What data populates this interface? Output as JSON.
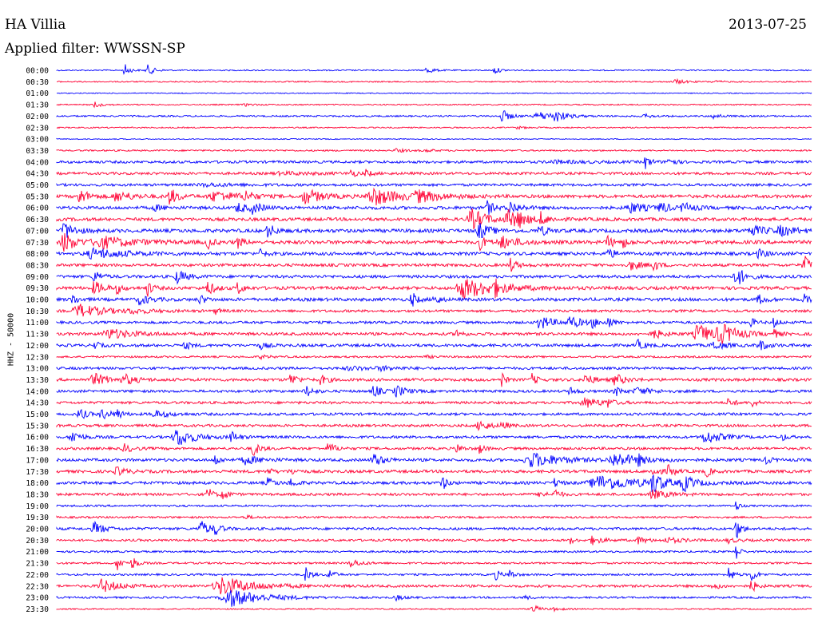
{
  "header": {
    "station": "HA Villia",
    "date": "2013-07-25",
    "filter": "Applied filter: WWSSN-SP"
  },
  "chart_data": {
    "type": "line",
    "title": "HA Villia",
    "ylabel": "HHZ - 50000",
    "trace_colors": [
      "#0000ff",
      "#ff0033"
    ],
    "rows": [
      "00:00",
      "00:30",
      "01:00",
      "01:30",
      "02:00",
      "02:30",
      "03:00",
      "03:30",
      "04:00",
      "04:30",
      "05:00",
      "05:30",
      "06:00",
      "06:30",
      "07:00",
      "07:30",
      "08:00",
      "08:30",
      "09:00",
      "09:30",
      "10:00",
      "10:30",
      "11:00",
      "11:30",
      "12:00",
      "12:30",
      "13:00",
      "13:30",
      "14:00",
      "14:30",
      "15:00",
      "15:30",
      "16:00",
      "16:30",
      "17:00",
      "17:30",
      "18:00",
      "18:30",
      "19:00",
      "19:30",
      "20:00",
      "20:30",
      "21:00",
      "21:30",
      "22:00",
      "22:30",
      "23:00",
      "23:30"
    ],
    "noise": [
      0.8,
      0.8,
      0.6,
      0.8,
      1.0,
      0.8,
      0.6,
      1.0,
      1.6,
      1.6,
      1.6,
      2.0,
      2.0,
      2.0,
      2.2,
      2.2,
      2.0,
      1.8,
      1.8,
      2.0,
      2.0,
      1.6,
      1.6,
      1.8,
      1.8,
      1.2,
      1.6,
      1.8,
      1.6,
      1.6,
      1.6,
      1.6,
      1.6,
      1.6,
      1.8,
      1.8,
      1.8,
      1.6,
      1.2,
      1.2,
      1.6,
      1.4,
      1.2,
      1.2,
      1.2,
      1.6,
      1.2,
      0.8
    ],
    "events": [
      [
        [
          0.09,
          8,
          0.006
        ],
        [
          0.12,
          7,
          0.008
        ],
        [
          0.49,
          5,
          0.008
        ],
        [
          0.58,
          5,
          0.006
        ]
      ],
      [
        [
          0.82,
          3,
          0.012
        ],
        [
          0.87,
          1.5,
          0.01
        ]
      ],
      [],
      [
        [
          0.05,
          4,
          0.008
        ],
        [
          0.25,
          1.5,
          0.01
        ]
      ],
      [
        [
          0.59,
          8,
          0.01
        ],
        [
          0.64,
          5,
          0.025
        ],
        [
          0.66,
          7,
          0.01
        ],
        [
          0.78,
          2,
          0.012
        ],
        [
          0.87,
          3,
          0.01
        ]
      ],
      [
        [
          0.61,
          1.5,
          0.01
        ]
      ],
      [],
      [
        [
          0.45,
          2,
          0.012
        ],
        [
          0.49,
          1.5,
          0.01
        ]
      ],
      [
        [
          0.78,
          8,
          0.006
        ],
        [
          0.81,
          9,
          0.006
        ],
        [
          0.66,
          1.5,
          0.04
        ]
      ],
      [
        [
          0.39,
          5,
          0.006
        ],
        [
          0.41,
          4,
          0.006
        ],
        [
          0.3,
          1.5,
          0.05
        ]
      ],
      [
        [
          0.2,
          1.5,
          0.05
        ]
      ],
      [
        [
          0.03,
          9,
          0.012
        ],
        [
          0.08,
          6,
          0.02
        ],
        [
          0.15,
          10,
          0.01
        ],
        [
          0.21,
          6,
          0.03
        ],
        [
          0.25,
          7,
          0.008
        ],
        [
          0.33,
          9,
          0.02
        ],
        [
          0.42,
          11,
          0.03
        ],
        [
          0.48,
          6,
          0.03
        ]
      ],
      [
        [
          0.24,
          7,
          0.01
        ],
        [
          0.26,
          6,
          0.012
        ],
        [
          0.57,
          9,
          0.008
        ],
        [
          0.6,
          8,
          0.012
        ],
        [
          0.76,
          6,
          0.02
        ],
        [
          0.8,
          8,
          0.008
        ],
        [
          0.83,
          6,
          0.012
        ],
        [
          0.13,
          3,
          0.012
        ]
      ],
      [
        [
          0.55,
          12,
          0.02
        ],
        [
          0.6,
          10,
          0.02
        ],
        [
          0.64,
          8,
          0.008
        ],
        [
          0.61,
          7,
          0.006
        ]
      ],
      [
        [
          0.01,
          11,
          0.012
        ],
        [
          0.28,
          9,
          0.008
        ],
        [
          0.56,
          10,
          0.012
        ],
        [
          0.64,
          6,
          0.01
        ],
        [
          0.92,
          6,
          0.02
        ],
        [
          0.96,
          5,
          0.02
        ]
      ],
      [
        [
          0.01,
          12,
          0.015
        ],
        [
          0.06,
          7,
          0.04
        ],
        [
          0.2,
          8,
          0.006
        ],
        [
          0.24,
          7,
          0.006
        ],
        [
          0.56,
          9,
          0.008
        ],
        [
          0.59,
          7,
          0.02
        ],
        [
          0.73,
          7,
          0.008
        ],
        [
          0.75,
          6,
          0.006
        ]
      ],
      [
        [
          0.05,
          6,
          0.04
        ],
        [
          0.27,
          5,
          0.006
        ],
        [
          0.73,
          6,
          0.01
        ],
        [
          0.93,
          5,
          0.01
        ]
      ],
      [
        [
          0.6,
          9,
          0.008
        ],
        [
          0.76,
          6,
          0.012
        ],
        [
          0.79,
          8,
          0.006
        ],
        [
          0.99,
          12,
          0.008
        ]
      ],
      [
        [
          0.05,
          8,
          0.008
        ],
        [
          0.16,
          8,
          0.012
        ],
        [
          0.9,
          14,
          0.01
        ]
      ],
      [
        [
          0.05,
          8,
          0.012
        ],
        [
          0.08,
          6,
          0.006
        ],
        [
          0.12,
          10,
          0.006
        ],
        [
          0.2,
          9,
          0.008
        ],
        [
          0.24,
          8,
          0.006
        ],
        [
          0.54,
          12,
          0.04
        ],
        [
          0.58,
          8,
          0.008
        ]
      ],
      [
        [
          0.02,
          8,
          0.006
        ],
        [
          0.11,
          6,
          0.012
        ],
        [
          0.19,
          6,
          0.006
        ],
        [
          0.47,
          10,
          0.006
        ],
        [
          0.5,
          8,
          0.006
        ],
        [
          0.93,
          6,
          0.008
        ],
        [
          0.99,
          6,
          0.006
        ]
      ],
      [
        [
          0.03,
          8,
          0.03
        ],
        [
          0.21,
          4,
          0.006
        ],
        [
          0.1,
          2,
          0.03
        ]
      ],
      [
        [
          0.64,
          9,
          0.015
        ],
        [
          0.68,
          7,
          0.015
        ],
        [
          0.71,
          6,
          0.006
        ],
        [
          0.73,
          8,
          0.006
        ],
        [
          0.92,
          5,
          0.006
        ],
        [
          0.95,
          6,
          0.006
        ]
      ],
      [
        [
          0.07,
          6,
          0.03
        ],
        [
          0.53,
          6,
          0.006
        ],
        [
          0.79,
          6,
          0.012
        ],
        [
          0.85,
          12,
          0.02
        ],
        [
          0.88,
          11,
          0.02
        ],
        [
          0.95,
          5,
          0.006
        ]
      ],
      [
        [
          0.05,
          5,
          0.006
        ],
        [
          0.17,
          6,
          0.006
        ],
        [
          0.27,
          4,
          0.008
        ],
        [
          0.77,
          6,
          0.008
        ],
        [
          0.87,
          6,
          0.012
        ],
        [
          0.93,
          7,
          0.01
        ]
      ],
      [
        [
          0.27,
          2,
          0.012
        ],
        [
          0.49,
          1.5,
          0.01
        ]
      ],
      [
        [
          0.39,
          2,
          0.03
        ],
        [
          0.43,
          2,
          0.02
        ]
      ],
      [
        [
          0.05,
          7,
          0.02
        ],
        [
          0.09,
          6,
          0.012
        ],
        [
          0.31,
          8,
          0.008
        ],
        [
          0.35,
          6,
          0.008
        ],
        [
          0.59,
          16,
          0.003
        ],
        [
          0.63,
          7,
          0.006
        ],
        [
          0.7,
          7,
          0.01
        ],
        [
          0.74,
          7,
          0.012
        ]
      ],
      [
        [
          0.33,
          8,
          0.008
        ],
        [
          0.42,
          8,
          0.008
        ],
        [
          0.45,
          7,
          0.012
        ],
        [
          0.68,
          5,
          0.008
        ],
        [
          0.74,
          6,
          0.008
        ],
        [
          0.77,
          4,
          0.02
        ]
      ],
      [
        [
          0.7,
          6,
          0.02
        ],
        [
          0.73,
          5,
          0.006
        ],
        [
          0.89,
          7,
          0.006
        ],
        [
          0.92,
          6,
          0.006
        ]
      ],
      [
        [
          0.03,
          8,
          0.008
        ],
        [
          0.06,
          6,
          0.012
        ],
        [
          0.08,
          6,
          0.006
        ],
        [
          0.13,
          4,
          0.02
        ]
      ],
      [
        [
          0.56,
          7,
          0.012
        ],
        [
          0.59,
          6,
          0.006
        ]
      ],
      [
        [
          0.02,
          9,
          0.01
        ],
        [
          0.16,
          12,
          0.02
        ],
        [
          0.23,
          8,
          0.008
        ],
        [
          0.86,
          8,
          0.02
        ],
        [
          0.96,
          5,
          0.006
        ]
      ],
      [
        [
          0.09,
          5,
          0.01
        ],
        [
          0.26,
          9,
          0.008
        ],
        [
          0.36,
          8,
          0.008
        ],
        [
          0.53,
          6,
          0.006
        ],
        [
          0.56,
          6,
          0.006
        ]
      ],
      [
        [
          0.21,
          7,
          0.006
        ],
        [
          0.25,
          5,
          0.02
        ],
        [
          0.42,
          8,
          0.012
        ],
        [
          0.63,
          9,
          0.035
        ],
        [
          0.74,
          8,
          0.03
        ],
        [
          0.77,
          5,
          0.006
        ],
        [
          0.94,
          5,
          0.006
        ]
      ],
      [
        [
          0.08,
          5,
          0.012
        ],
        [
          0.28,
          4,
          0.006
        ],
        [
          0.31,
          5,
          0.006
        ],
        [
          0.79,
          6,
          0.008
        ],
        [
          0.81,
          7,
          0.008
        ],
        [
          0.86,
          7,
          0.006
        ]
      ],
      [
        [
          0.28,
          6,
          0.008
        ],
        [
          0.31,
          5,
          0.008
        ],
        [
          0.51,
          10,
          0.006
        ],
        [
          0.66,
          6,
          0.006
        ],
        [
          0.72,
          9,
          0.05
        ],
        [
          0.79,
          12,
          0.012
        ],
        [
          0.83,
          10,
          0.012
        ]
      ],
      [
        [
          0.2,
          9,
          0.006
        ],
        [
          0.22,
          8,
          0.006
        ],
        [
          0.64,
          6,
          0.006
        ],
        [
          0.66,
          7,
          0.006
        ],
        [
          0.79,
          5,
          0.02
        ]
      ],
      [
        [
          0.9,
          7,
          0.004
        ]
      ],
      [
        [
          0.25,
          2,
          0.01
        ]
      ],
      [
        [
          0.05,
          8,
          0.012
        ],
        [
          0.19,
          10,
          0.012
        ],
        [
          0.21,
          7,
          0.006
        ],
        [
          0.9,
          14,
          0.006
        ]
      ],
      [
        [
          0.68,
          4,
          0.006
        ],
        [
          0.71,
          5,
          0.012
        ],
        [
          0.77,
          4,
          0.012
        ],
        [
          0.81,
          3,
          0.02
        ],
        [
          0.89,
          3,
          0.01
        ]
      ],
      [
        [
          0.9,
          12,
          0.004
        ]
      ],
      [
        [
          0.08,
          10,
          0.006
        ],
        [
          0.1,
          9,
          0.006
        ],
        [
          0.39,
          5,
          0.012
        ]
      ],
      [
        [
          0.33,
          10,
          0.006
        ],
        [
          0.36,
          9,
          0.006
        ],
        [
          0.58,
          8,
          0.006
        ],
        [
          0.6,
          6,
          0.006
        ],
        [
          0.89,
          10,
          0.006
        ],
        [
          0.92,
          10,
          0.006
        ]
      ],
      [
        [
          0.06,
          8,
          0.02
        ],
        [
          0.22,
          11,
          0.04
        ],
        [
          0.87,
          4,
          0.008
        ],
        [
          0.92,
          8,
          0.006
        ]
      ],
      [
        [
          0.23,
          11,
          0.04
        ],
        [
          0.45,
          3,
          0.01
        ],
        [
          0.62,
          2,
          0.01
        ]
      ],
      [
        [
          0.63,
          6,
          0.008
        ],
        [
          0.66,
          2,
          0.01
        ]
      ]
    ]
  }
}
